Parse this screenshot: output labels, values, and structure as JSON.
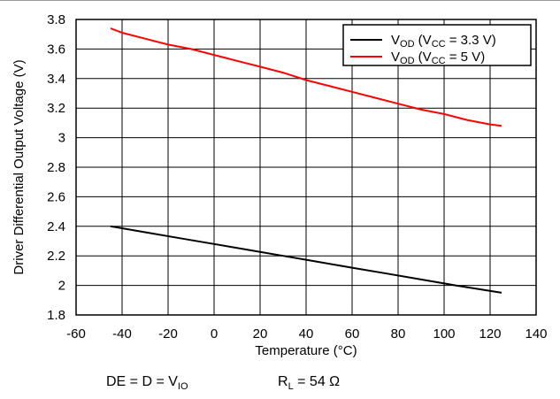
{
  "chart_data": {
    "type": "line",
    "xlabel": "Temperature (°C)",
    "ylabel": "Driver Differential Output Voltage (V)",
    "xlim": [
      -60,
      140
    ],
    "ylim": [
      1.8,
      3.8
    ],
    "x_ticks": [
      "-60",
      "-40",
      "-20",
      "0",
      "20",
      "40",
      "60",
      "80",
      "100",
      "120",
      "140"
    ],
    "y_ticks": [
      "1.8",
      "2",
      "2.2",
      "2.4",
      "2.6",
      "2.8",
      "3",
      "3.2",
      "3.4",
      "3.6",
      "3.8"
    ],
    "grid": true,
    "legend_position": "top-right",
    "series": [
      {
        "legend_main": "V",
        "legend_sub": "OD",
        "legend_open": " (V",
        "legend_sub2": "CC",
        "legend_close": " = 3.3 V)",
        "color": "#000000",
        "x": [
          -45,
          -30,
          -15,
          0,
          15,
          30,
          45,
          60,
          75,
          90,
          105,
          125
        ],
        "y": [
          2.4,
          2.36,
          2.32,
          2.28,
          2.24,
          2.2,
          2.16,
          2.12,
          2.08,
          2.04,
          2.0,
          1.95
        ]
      },
      {
        "legend_main": "V",
        "legend_sub": "OD",
        "legend_open": " (V",
        "legend_sub2": "CC",
        "legend_close": " = 5 V)",
        "color": "#ff0000",
        "x": [
          -45,
          -40,
          -30,
          -20,
          -10,
          0,
          10,
          20,
          30,
          40,
          50,
          60,
          70,
          80,
          90,
          100,
          110,
          120,
          125
        ],
        "y": [
          3.74,
          3.71,
          3.67,
          3.63,
          3.6,
          3.56,
          3.52,
          3.48,
          3.44,
          3.39,
          3.35,
          3.31,
          3.27,
          3.23,
          3.19,
          3.16,
          3.12,
          3.09,
          3.08
        ]
      }
    ]
  },
  "notes": {
    "left_main": "DE = D = V",
    "left_sub": "IO",
    "right_main": "R",
    "right_sub": "L",
    "right_tail": " = 54 Ω"
  }
}
